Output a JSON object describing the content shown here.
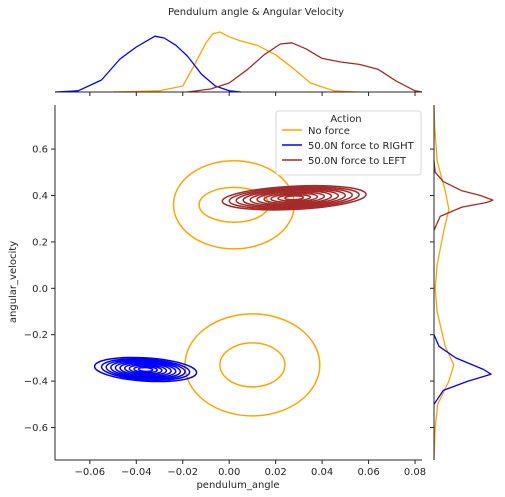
{
  "chart_data": {
    "type": "kde-joint",
    "title": "Pendulum angle & Angular Velocity",
    "xlabel": "pendulum_angle",
    "ylabel": "angular_velocity",
    "xlim": [
      -0.075,
      0.083
    ],
    "ylim": [
      -0.74,
      0.79
    ],
    "x_ticks": [
      -0.06,
      -0.04,
      -0.02,
      0.0,
      0.02,
      0.04,
      0.06,
      0.08
    ],
    "x_tick_labels": [
      "−0.06",
      "−0.04",
      "−0.02",
      "0.00",
      "0.02",
      "0.04",
      "0.06",
      "0.08"
    ],
    "y_ticks": [
      -0.6,
      -0.4,
      -0.2,
      0.0,
      0.2,
      0.4,
      0.6
    ],
    "y_tick_labels": [
      "−0.6",
      "−0.4",
      "−0.2",
      "0.0",
      "0.2",
      "0.4",
      "0.6"
    ],
    "legend": {
      "title": "Action",
      "placement": "top-right"
    },
    "series": [
      {
        "name": "No force",
        "color": "#FFA500",
        "clusters": [
          {
            "center": [
              0.002,
              0.36
            ],
            "levels": [
              [
                0.026,
                0.19
              ],
              [
                0.015,
                0.075
              ]
            ]
          },
          {
            "center": [
              0.01,
              -0.33
            ],
            "levels": [
              [
                0.029,
                0.22
              ],
              [
                0.014,
                0.095
              ]
            ]
          }
        ],
        "x_marginal": [
          [
            -0.05,
            0.0
          ],
          [
            -0.03,
            0.02
          ],
          [
            -0.02,
            0.1
          ],
          [
            -0.015,
            0.45
          ],
          [
            -0.01,
            0.82
          ],
          [
            -0.007,
            0.97
          ],
          [
            -0.004,
            1.0
          ],
          [
            0.0,
            0.92
          ],
          [
            0.005,
            0.85
          ],
          [
            0.012,
            0.78
          ],
          [
            0.02,
            0.62
          ],
          [
            0.028,
            0.38
          ],
          [
            0.035,
            0.15
          ],
          [
            0.045,
            0.02
          ],
          [
            0.055,
            0.0
          ]
        ],
        "y_marginal": [
          [
            -0.74,
            0.0
          ],
          [
            -0.6,
            0.02
          ],
          [
            -0.5,
            0.06
          ],
          [
            -0.4,
            0.24
          ],
          [
            -0.33,
            0.32
          ],
          [
            -0.25,
            0.18
          ],
          [
            -0.1,
            0.05
          ],
          [
            0.0,
            0.02
          ],
          [
            0.1,
            0.05
          ],
          [
            0.25,
            0.16
          ],
          [
            0.34,
            0.24
          ],
          [
            0.42,
            0.18
          ],
          [
            0.55,
            0.05
          ],
          [
            0.7,
            0.01
          ],
          [
            0.79,
            0.0
          ]
        ]
      },
      {
        "name": "50.0N force to RIGHT",
        "color": "#0000FF",
        "clusters": [
          {
            "center": [
              -0.036,
              -0.35
            ],
            "skew": 0.9,
            "levels": [
              [
                0.022,
                0.05
              ],
              [
                0.019,
                0.045
              ],
              [
                0.017,
                0.04
              ],
              [
                0.015,
                0.036
              ],
              [
                0.013,
                0.032
              ],
              [
                0.011,
                0.028
              ],
              [
                0.009,
                0.023
              ],
              [
                0.007,
                0.018
              ],
              [
                0.005,
                0.013
              ],
              [
                0.003,
                0.008
              ]
            ]
          }
        ],
        "x_marginal": [
          [
            -0.075,
            0.0
          ],
          [
            -0.065,
            0.02
          ],
          [
            -0.055,
            0.2
          ],
          [
            -0.047,
            0.55
          ],
          [
            -0.04,
            0.75
          ],
          [
            -0.032,
            0.93
          ],
          [
            -0.028,
            0.9
          ],
          [
            -0.023,
            0.78
          ],
          [
            -0.018,
            0.6
          ],
          [
            -0.012,
            0.3
          ],
          [
            -0.006,
            0.1
          ],
          [
            0.0,
            0.02
          ],
          [
            0.005,
            0.0
          ]
        ],
        "y_marginal": [
          [
            -0.5,
            0.0
          ],
          [
            -0.44,
            0.15
          ],
          [
            -0.4,
            0.55
          ],
          [
            -0.37,
            0.92
          ],
          [
            -0.35,
            0.8
          ],
          [
            -0.3,
            0.35
          ],
          [
            -0.25,
            0.08
          ],
          [
            -0.2,
            0.0
          ]
        ]
      },
      {
        "name": "50.0N force to LEFT",
        "color": "#A52A2A",
        "clusters": [
          {
            "center": [
              0.028,
              0.39
            ],
            "skew": -0.7,
            "levels": [
              [
                0.031,
                0.05
              ],
              [
                0.028,
                0.045
              ],
              [
                0.025,
                0.04
              ],
              [
                0.022,
                0.036
              ],
              [
                0.019,
                0.032
              ],
              [
                0.016,
                0.028
              ],
              [
                0.013,
                0.023
              ],
              [
                0.01,
                0.018
              ],
              [
                0.007,
                0.013
              ],
              [
                0.004,
                0.008
              ]
            ]
          }
        ],
        "x_marginal": [
          [
            -0.018,
            0.0
          ],
          [
            -0.008,
            0.05
          ],
          [
            0.0,
            0.15
          ],
          [
            0.008,
            0.38
          ],
          [
            0.015,
            0.62
          ],
          [
            0.022,
            0.8
          ],
          [
            0.027,
            0.82
          ],
          [
            0.033,
            0.72
          ],
          [
            0.04,
            0.56
          ],
          [
            0.048,
            0.5
          ],
          [
            0.056,
            0.46
          ],
          [
            0.064,
            0.38
          ],
          [
            0.072,
            0.18
          ],
          [
            0.08,
            0.02
          ],
          [
            0.083,
            0.0
          ]
        ],
        "y_marginal": [
          [
            0.25,
            0.0
          ],
          [
            0.31,
            0.1
          ],
          [
            0.35,
            0.45
          ],
          [
            0.37,
            0.85
          ],
          [
            0.38,
            0.95
          ],
          [
            0.4,
            0.75
          ],
          [
            0.42,
            0.45
          ],
          [
            0.46,
            0.15
          ],
          [
            0.5,
            0.02
          ],
          [
            0.55,
            0.0
          ]
        ]
      }
    ],
    "grid": false
  }
}
